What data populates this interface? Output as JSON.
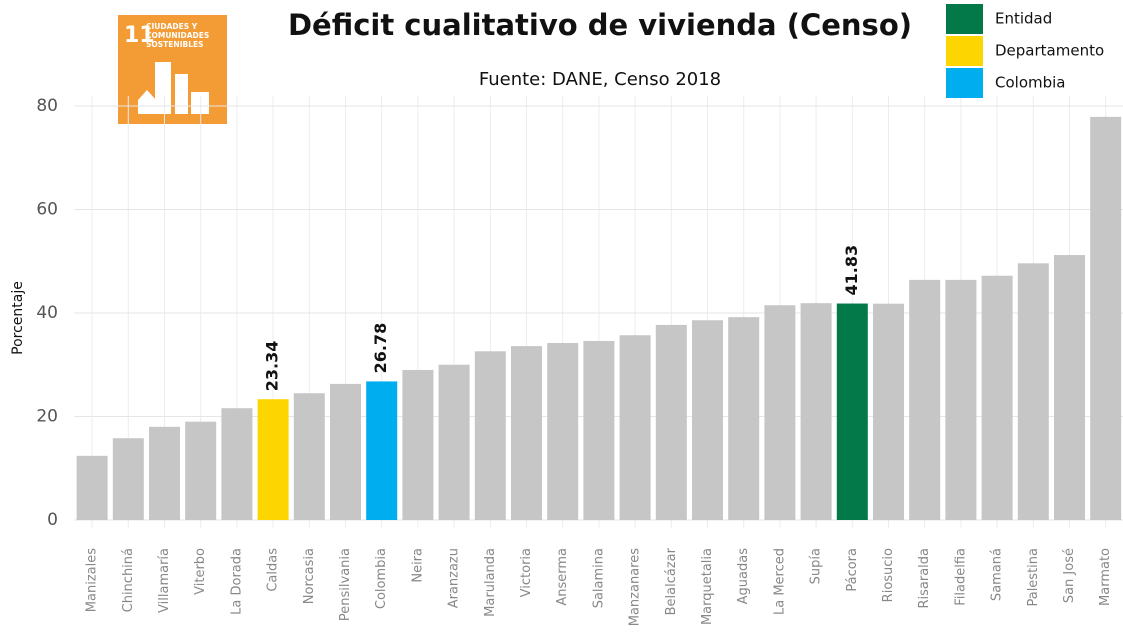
{
  "chart_data": {
    "type": "bar",
    "title": "Déficit cualitativo de vivienda (Censo)",
    "subtitle": "Fuente: DANE, Censo 2018",
    "y_label": "Porcentaje",
    "badge": {
      "number": "11",
      "lines": [
        "CIUDADES Y",
        "COMUNIDADES",
        "SOSTENIBLES"
      ]
    },
    "legend": [
      {
        "name": "Entidad",
        "color": "#03794a"
      },
      {
        "name": "Departamento",
        "color": "#fdd500"
      },
      {
        "name": "Colombia",
        "color": "#00adef"
      }
    ],
    "categories": [
      "Manizales",
      "Chinchiná",
      "Villamaría",
      "Viterbo",
      "La Dorada",
      "Caldas",
      "Norcasia",
      "Pensilvania",
      "Colombia",
      "Neira",
      "Aranzazu",
      "Marulanda",
      "Victoria",
      "Anserma",
      "Salamina",
      "Manzanares",
      "Belalcázar",
      "Marquetalia",
      "Aguadas",
      "La Merced",
      "Supía",
      "Pácora",
      "Riosucio",
      "Risaralda",
      "Filadelfia",
      "Samaná",
      "Palestina",
      "San José",
      "Marmato"
    ],
    "values": [
      12.4,
      15.8,
      18.0,
      19.0,
      21.6,
      23.34,
      24.5,
      26.3,
      26.78,
      29.0,
      30.0,
      32.6,
      33.6,
      34.2,
      34.6,
      35.7,
      37.7,
      38.6,
      39.2,
      41.5,
      41.9,
      41.83,
      41.8,
      46.4,
      46.4,
      47.2,
      49.6,
      51.2,
      77.9
    ],
    "value_labels": [
      null,
      null,
      null,
      null,
      null,
      "23.34",
      null,
      null,
      "26.78",
      null,
      null,
      null,
      null,
      null,
      null,
      null,
      null,
      null,
      null,
      null,
      null,
      "41.83",
      null,
      null,
      null,
      null,
      null,
      null,
      null
    ],
    "colors": [
      "#c6c6c6",
      "#c6c6c6",
      "#c6c6c6",
      "#c6c6c6",
      "#c6c6c6",
      "#fdd500",
      "#c6c6c6",
      "#c6c6c6",
      "#00adef",
      "#c6c6c6",
      "#c6c6c6",
      "#c6c6c6",
      "#c6c6c6",
      "#c6c6c6",
      "#c6c6c6",
      "#c6c6c6",
      "#c6c6c6",
      "#c6c6c6",
      "#c6c6c6",
      "#c6c6c6",
      "#c6c6c6",
      "#03794a",
      "#c6c6c6",
      "#c6c6c6",
      "#c6c6c6",
      "#c6c6c6",
      "#c6c6c6",
      "#c6c6c6",
      "#c6c6c6"
    ],
    "ylim": [
      0,
      80
    ],
    "yticks": [
      0,
      20,
      40,
      60,
      80
    ],
    "grid": true
  }
}
